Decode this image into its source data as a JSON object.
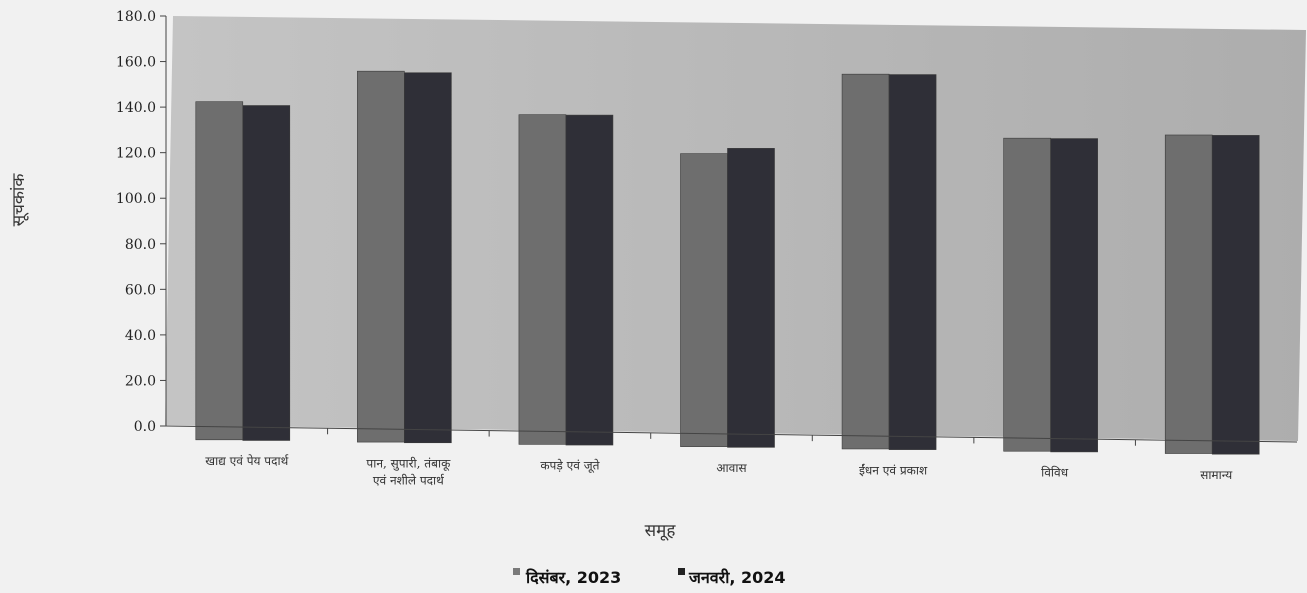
{
  "chart_data": {
    "type": "bar",
    "title": "",
    "xlabel": "समूह",
    "ylabel": "सूचकांक",
    "ylim": [
      0,
      180
    ],
    "yticks": [
      "0.0",
      "20.0",
      "40.0",
      "60.0",
      "80.0",
      "100.0",
      "120.0",
      "140.0",
      "160.0",
      "180.0"
    ],
    "grid": false,
    "legend_position": "bottom",
    "categories": [
      [
        "खाद्य एवं पेय पदार्थ"
      ],
      [
        "पान, सुपारी, तंबाकू",
        "एवं नशीले पदार्थ"
      ],
      [
        "कपड़े एवं जूते"
      ],
      [
        "आवास"
      ],
      [
        "ईंधन एवं प्रकाश"
      ],
      [
        "विविध"
      ],
      [
        "सामान्य"
      ]
    ],
    "series": [
      {
        "name": "दिसंबर, 2023",
        "color": "#6e6e6e",
        "values": [
          142.5,
          156.5,
          138.0,
          121.5,
          157.0,
          129.5,
          131.5
        ]
      },
      {
        "name": "जनवरी, 2024",
        "color": "#2f2f37",
        "values": [
          141.0,
          156.0,
          138.0,
          124.0,
          157.0,
          129.5,
          131.5
        ]
      }
    ],
    "legend_labels": [
      "दिसंबर, 2023",
      "जनवरी, 2024"
    ],
    "colors": {
      "plot_background": "#b6b6b6",
      "page_background": "#f1f1f1"
    }
  }
}
